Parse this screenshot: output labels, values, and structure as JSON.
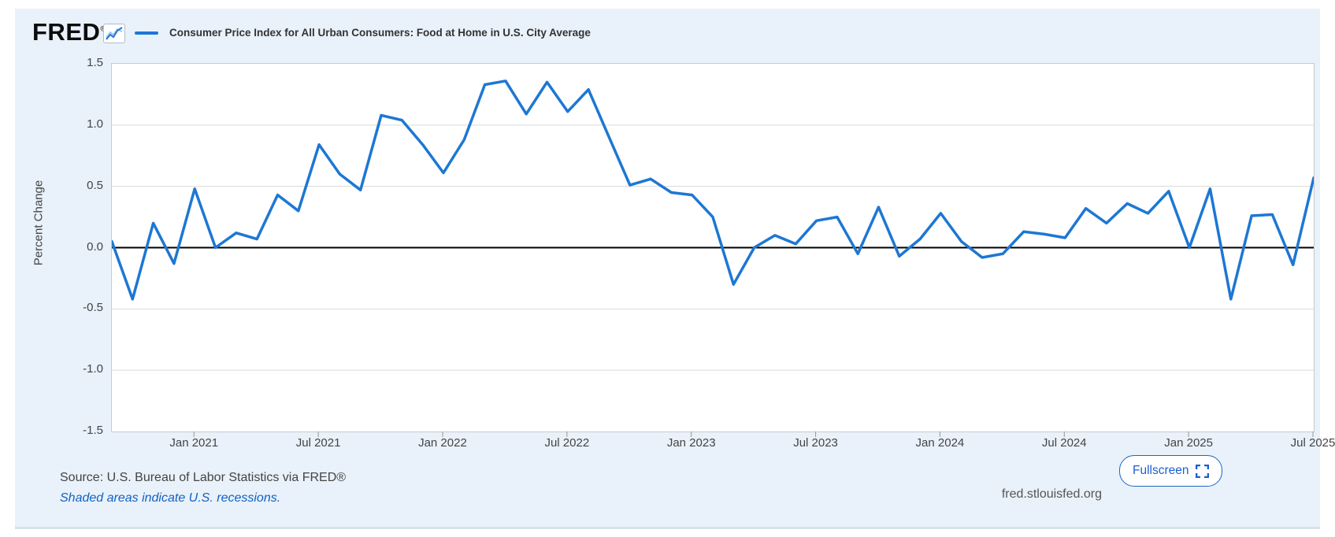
{
  "header": {
    "logo_text": "FRED",
    "logo_registered": "®",
    "series_title": "Consumer Price Index for All Urban Consumers: Food at Home in U.S. City Average"
  },
  "footer": {
    "source": "Source: U.S. Bureau of Labor Statistics via FRED®",
    "recessions_note": "Shaded areas indicate U.S. recessions.",
    "site": "fred.stlouisfed.org",
    "fullscreen_label": "Fullscreen"
  },
  "colors": {
    "panel_bg": "#e9f1fa",
    "line": "#1d77d3",
    "grid": "#d9d9d9",
    "zero_line": "#000000",
    "axis_text": "#444444",
    "link_blue": "#1261c4",
    "button_blue": "#2064c8"
  },
  "chart_data": {
    "type": "line",
    "title": "Consumer Price Index for All Urban Consumers: Food at Home in U.S. City Average",
    "ylabel": "Percent Change",
    "ylim": [
      -1.5,
      1.5
    ],
    "grid": true,
    "legend_position": "top-left",
    "yticks": [
      "1.5",
      "1.0",
      "0.5",
      "0.0",
      "-0.5",
      "-1.0",
      "-1.5"
    ],
    "xticks": [
      {
        "index": 4,
        "label": "Jan 2021"
      },
      {
        "index": 10,
        "label": "Jul 2021"
      },
      {
        "index": 16,
        "label": "Jan 2022"
      },
      {
        "index": 22,
        "label": "Jul 2022"
      },
      {
        "index": 28,
        "label": "Jan 2023"
      },
      {
        "index": 34,
        "label": "Jul 2023"
      },
      {
        "index": 40,
        "label": "Jan 2024"
      },
      {
        "index": 46,
        "label": "Jul 2024"
      },
      {
        "index": 52,
        "label": "Jan 2025"
      },
      {
        "index": 58,
        "label": "Jul 2025"
      }
    ],
    "x": [
      "2020-09",
      "2020-10",
      "2020-11",
      "2020-12",
      "2021-01",
      "2021-02",
      "2021-03",
      "2021-04",
      "2021-05",
      "2021-06",
      "2021-07",
      "2021-08",
      "2021-09",
      "2021-10",
      "2021-11",
      "2021-12",
      "2022-01",
      "2022-02",
      "2022-03",
      "2022-04",
      "2022-05",
      "2022-06",
      "2022-07",
      "2022-08",
      "2022-09",
      "2022-10",
      "2022-11",
      "2022-12",
      "2023-01",
      "2023-02",
      "2023-03",
      "2023-04",
      "2023-05",
      "2023-06",
      "2023-07",
      "2023-08",
      "2023-09",
      "2023-10",
      "2023-11",
      "2023-12",
      "2024-01",
      "2024-02",
      "2024-03",
      "2024-04",
      "2024-05",
      "2024-06",
      "2024-07",
      "2024-08",
      "2024-09",
      "2024-10",
      "2024-11",
      "2024-12",
      "2025-01",
      "2025-02",
      "2025-03",
      "2025-04",
      "2025-05",
      "2025-06",
      "2025-07"
    ],
    "series": [
      {
        "name": "Consumer Price Index for All Urban Consumers: Food at Home in U.S. City Average",
        "units": "Percent Change",
        "values": [
          0.05,
          -0.42,
          0.2,
          -0.13,
          0.48,
          0.0,
          0.12,
          0.07,
          0.43,
          0.3,
          0.84,
          0.6,
          0.47,
          1.08,
          1.04,
          0.84,
          0.61,
          0.88,
          1.33,
          1.36,
          1.09,
          1.35,
          1.11,
          1.29,
          0.9,
          0.51,
          0.56,
          0.45,
          0.43,
          0.25,
          -0.3,
          0.0,
          0.1,
          0.03,
          0.22,
          0.25,
          -0.05,
          0.33,
          -0.07,
          0.07,
          0.28,
          0.05,
          -0.08,
          -0.05,
          0.13,
          0.11,
          0.08,
          0.32,
          0.2,
          0.36,
          0.28,
          0.46,
          0.0,
          0.48,
          -0.42,
          0.26,
          0.27,
          -0.14,
          0.57
        ]
      }
    ]
  }
}
